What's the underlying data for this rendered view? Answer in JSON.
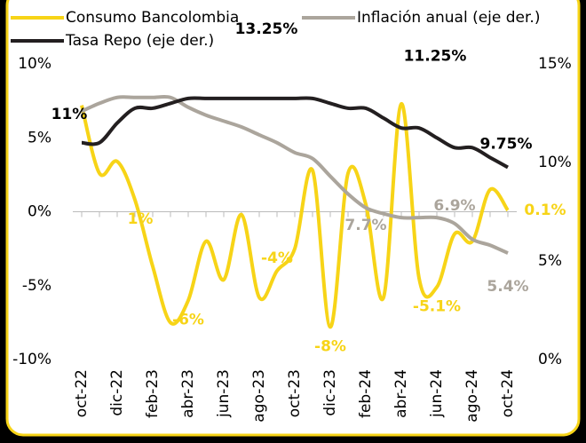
{
  "chart_data": {
    "type": "line",
    "categories": [
      "oct-22",
      "nov-22",
      "dic-22",
      "ene-23",
      "feb-23",
      "mar-23",
      "abr-23",
      "may-23",
      "jun-23",
      "jul-23",
      "ago-23",
      "sep-23",
      "oct-23",
      "nov-23",
      "dic-23",
      "ene-24",
      "feb-24",
      "mar-24",
      "abr-24",
      "may-24",
      "jun-24",
      "jul-24",
      "ago-24",
      "sep-24",
      "oct-24"
    ],
    "category_labels": [
      "oct-22",
      null,
      "dic-22",
      null,
      "feb-23",
      null,
      "abr-23",
      null,
      "jun-23",
      null,
      "ago-23",
      null,
      "oct-23",
      null,
      "dic-23",
      null,
      "feb-24",
      null,
      "abr-24",
      null,
      "jun-24",
      null,
      "ago-24",
      null,
      "oct-24"
    ],
    "series": [
      {
        "name": "Consumo Bancolombia",
        "color": "#f7d417",
        "axis": "y",
        "values": [
          7.2,
          2.6,
          3.4,
          0.8,
          -3.7,
          -7.5,
          -6.0,
          -2.0,
          -4.6,
          -0.2,
          -5.8,
          -4.0,
          -2.5,
          2.8,
          -7.8,
          2.6,
          0.5,
          -5.8,
          7.3,
          -4.5,
          -5.1,
          -1.5,
          -2.0,
          1.5,
          0.1
        ],
        "value_labels": [
          null,
          null,
          null,
          "1%",
          null,
          null,
          "-6%",
          null,
          null,
          null,
          null,
          "-4%",
          null,
          null,
          "-8%",
          null,
          null,
          null,
          null,
          null,
          "-5.1%",
          null,
          null,
          null,
          "0.1%"
        ]
      },
      {
        "name": "Inflación anual (eje der.)",
        "color": "#aba59c",
        "axis": "y2",
        "values": [
          12.6,
          13.0,
          13.3,
          13.3,
          13.3,
          13.3,
          12.8,
          12.4,
          12.1,
          11.8,
          11.4,
          11.0,
          10.5,
          10.2,
          9.3,
          8.4,
          7.7,
          7.4,
          7.2,
          7.2,
          7.2,
          6.9,
          6.1,
          5.8,
          5.4
        ],
        "value_labels": [
          null,
          null,
          null,
          null,
          null,
          null,
          null,
          null,
          null,
          null,
          null,
          null,
          null,
          null,
          null,
          null,
          "7.7%",
          null,
          null,
          null,
          null,
          "6.9%",
          null,
          null,
          "5.4%"
        ]
      },
      {
        "name": "Tasa Repo (eje der.)",
        "color": "#231f20",
        "axis": "y2",
        "values": [
          11,
          11,
          12,
          12.75,
          12.75,
          13,
          13.25,
          13.25,
          13.25,
          13.25,
          13.25,
          13.25,
          13.25,
          13.25,
          13,
          12.75,
          12.75,
          12.25,
          11.75,
          11.75,
          11.25,
          10.75,
          10.75,
          10.25,
          9.75
        ],
        "value_labels": [
          "11%",
          null,
          null,
          null,
          null,
          null,
          null,
          null,
          null,
          null,
          "13.25%",
          null,
          null,
          null,
          null,
          null,
          null,
          null,
          null,
          null,
          "11.25%",
          null,
          null,
          null,
          "9.75%"
        ]
      }
    ],
    "ylim": [
      -10,
      10
    ],
    "yticks": [
      {
        "value": -10,
        "label": "-10%"
      },
      {
        "value": -5,
        "label": "-5%"
      },
      {
        "value": 0,
        "label": "0%"
      },
      {
        "value": 5,
        "label": "5%"
      },
      {
        "value": 10,
        "label": "10%"
      }
    ],
    "y2lim": [
      0,
      15
    ],
    "y2ticks": [
      {
        "value": 0,
        "label": "0%"
      },
      {
        "value": 5,
        "label": "5%"
      },
      {
        "value": 10,
        "label": "10%"
      },
      {
        "value": 15,
        "label": "15%"
      }
    ],
    "legend": "top"
  }
}
